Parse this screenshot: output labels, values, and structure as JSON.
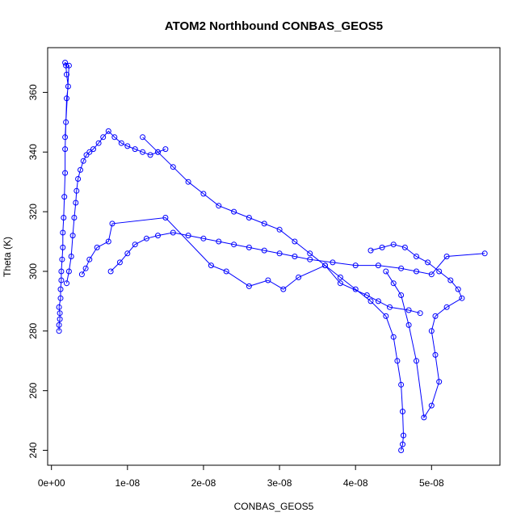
{
  "chart_data": {
    "type": "scatter",
    "title": "ATOM2 Northbound CONBAS_GEOS5",
    "xlabel": "CONBAS_GEOS5",
    "ylabel": "Theta (K)",
    "xlim": [
      -5e-10,
      5.9e-08
    ],
    "ylim": [
      235,
      375
    ],
    "grid": false,
    "legend": "none",
    "x_ticks": [
      0,
      1e-08,
      2e-08,
      3e-08,
      4e-08,
      5e-08
    ],
    "x_tick_labels": [
      "0e+00",
      "1e-08",
      "2e-08",
      "3e-08",
      "4e-08",
      "5e-08"
    ],
    "y_ticks": [
      240,
      260,
      280,
      300,
      320,
      340,
      360
    ],
    "y_tick_labels": [
      "240",
      "260",
      "280",
      "300",
      "320",
      "340",
      "360"
    ],
    "series_color": "#0000ff",
    "series": [
      {
        "x": [
          1e-09,
          1e-09,
          1.1e-09,
          1.1e-09,
          1e-09,
          1.2e-09,
          1.2e-09,
          1.3e-09,
          1.3e-09,
          1.4e-09,
          1.5e-09,
          1.5e-09,
          1.6e-09,
          1.7e-09,
          1.8e-09,
          1.8e-09,
          1.9e-09,
          2e-09,
          2.2e-09,
          2e-09,
          1.9e-09,
          1.8e-09,
          2.3e-09,
          1.8e-09
        ],
        "y": [
          280,
          282,
          284,
          286,
          288,
          291,
          294,
          297,
          300,
          304,
          308,
          313,
          318,
          325,
          333,
          341,
          350,
          358,
          362,
          366,
          369,
          370,
          369,
          345
        ]
      },
      {
        "x": [
          2e-09,
          2.3e-09,
          2.6e-09,
          2.8e-09,
          3e-09,
          3.2e-09,
          3.3e-09,
          3.5e-09,
          3.8e-09,
          4.2e-09,
          4.6e-09,
          5e-09,
          5.5e-09,
          6.2e-09,
          6.8e-09,
          7.5e-09,
          8.3e-09,
          9.2e-09,
          1e-08,
          1.1e-08,
          1.2e-08,
          1.3e-08,
          1.4e-08,
          1.5e-08
        ],
        "y": [
          296,
          300,
          305,
          312,
          318,
          323,
          327,
          331,
          334,
          337,
          339,
          340,
          341,
          343,
          345,
          347,
          345,
          343,
          342,
          341,
          340,
          339,
          340,
          341
        ]
      },
      {
        "x": [
          7.8e-09,
          9e-09,
          1e-08,
          1.1e-08,
          1.25e-08,
          1.4e-08,
          1.6e-08,
          1.8e-08,
          2e-08,
          2.2e-08,
          2.4e-08,
          2.6e-08,
          2.8e-08,
          3e-08,
          3.2e-08,
          3.4e-08,
          3.7e-08,
          4e-08,
          4.3e-08,
          4.6e-08,
          4.8e-08,
          5e-08,
          5.2e-08,
          5.7e-08
        ],
        "y": [
          300,
          303,
          306,
          309,
          311,
          312,
          313,
          312,
          311,
          310,
          309,
          308,
          307,
          306,
          305,
          304,
          303,
          302,
          302,
          301,
          300,
          299,
          305,
          306
        ]
      },
      {
        "x": [
          1.2e-08,
          1.4e-08,
          1.6e-08,
          1.8e-08,
          2e-08,
          2.2e-08,
          2.4e-08,
          2.6e-08,
          2.8e-08,
          3e-08,
          3.2e-08,
          3.4e-08,
          3.6e-08,
          3.8e-08,
          4e-08,
          4.2e-08,
          4.4e-08,
          4.5e-08,
          4.55e-08,
          4.6e-08,
          4.62e-08,
          4.63e-08,
          4.62e-08,
          4.6e-08
        ],
        "y": [
          345,
          340,
          335,
          330,
          326,
          322,
          320,
          318,
          316,
          314,
          310,
          306,
          302,
          298,
          294,
          290,
          285,
          278,
          270,
          262,
          253,
          245,
          242,
          240
        ]
      },
      {
        "x": [
          4.2e-08,
          4.35e-08,
          4.5e-08,
          4.65e-08,
          4.8e-08,
          4.95e-08,
          5.1e-08,
          5.25e-08,
          5.35e-08,
          5.4e-08,
          5.2e-08,
          5.05e-08,
          5e-08,
          5.05e-08,
          5.1e-08,
          5e-08,
          4.9e-08,
          4.8e-08,
          4.7e-08,
          4.6e-08,
          4.5e-08,
          4.4e-08
        ],
        "y": [
          307,
          308,
          309,
          308,
          305,
          303,
          300,
          297,
          294,
          291,
          288,
          285,
          280,
          272,
          263,
          255,
          251,
          270,
          282,
          292,
          296,
          300
        ]
      },
      {
        "x": [
          4e-09,
          4.5e-09,
          5e-09,
          6e-09,
          7.5e-09,
          8e-09,
          1.5e-08,
          2.1e-08,
          2.3e-08,
          2.6e-08,
          2.85e-08,
          3.05e-08,
          3.25e-08,
          3.6e-08,
          3.8e-08,
          4.15e-08,
          4.3e-08,
          4.45e-08,
          4.7e-08,
          4.85e-08
        ],
        "y": [
          299,
          301,
          304,
          308,
          310,
          316,
          318,
          302,
          300,
          295,
          297,
          294,
          298,
          302,
          296,
          292,
          290,
          288,
          287,
          286
        ]
      }
    ]
  }
}
